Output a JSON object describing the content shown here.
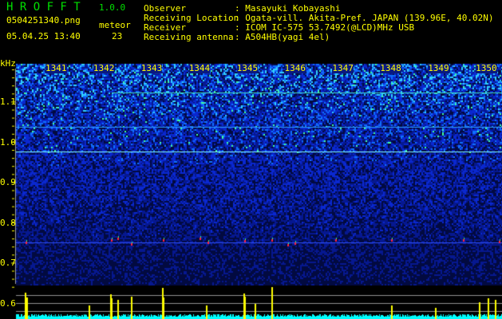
{
  "header": {
    "app_name": "H R O F F T",
    "version": "1.0.0",
    "filename": "0504251340.png",
    "datetime": "05.04.25 13:40",
    "meteor_label": "meteor",
    "meteor_count": "23"
  },
  "info": [
    {
      "label": "Observer",
      "value": ": Masayuki Kobayashi"
    },
    {
      "label": "Receiving Location",
      "value": ": Ogata-vill. Akita-Pref. JAPAN (139.96E, 40.02N)"
    },
    {
      "label": "Receiver",
      "value": ": ICOM IC-575 53.7492(@LCD)MHz USB"
    },
    {
      "label": "Receiving antenna",
      "value": ": A504HB(yagi 4el)"
    }
  ],
  "spectrogram": {
    "freq_unit": "kHz",
    "freq_ticks": [
      "1.1",
      "1.0",
      "0.9",
      "0.8",
      "0.7",
      "0.6"
    ],
    "time_ticks": [
      "1341",
      "1342",
      "1343",
      "1344",
      "1345",
      "1346",
      "1347",
      "1348",
      "1349",
      "1350"
    ],
    "colors": {
      "background": "#000020",
      "noise": "#0a28d0",
      "signal": "#00ffff",
      "text": "#ffff00",
      "count_bars": "#ffff00",
      "level": "#00ffff"
    }
  }
}
